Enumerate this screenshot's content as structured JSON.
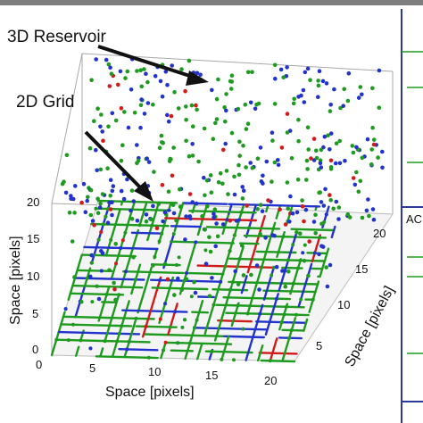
{
  "annotations": {
    "reservoir_label": "3D Reservoir",
    "grid_label": "2D Grid"
  },
  "axes": {
    "x_label": "Space [pixels]",
    "y_label": "Space [pixels]",
    "z_label": "Space [pixels]",
    "x_ticks": [
      "0",
      "5",
      "10",
      "15",
      "20"
    ],
    "y_ticks": [
      "5",
      "10",
      "15",
      "20"
    ],
    "z_ticks": [
      "0",
      "5",
      "10",
      "15",
      "20"
    ]
  },
  "side_panel": {
    "label": "AC"
  },
  "colors": {
    "green": "#1e9a1e",
    "blue": "#2233cc",
    "red": "#d11a1a",
    "panel_border": "#2a3aa0",
    "arrow": "#111111",
    "box": "#9a9a9a"
  }
}
